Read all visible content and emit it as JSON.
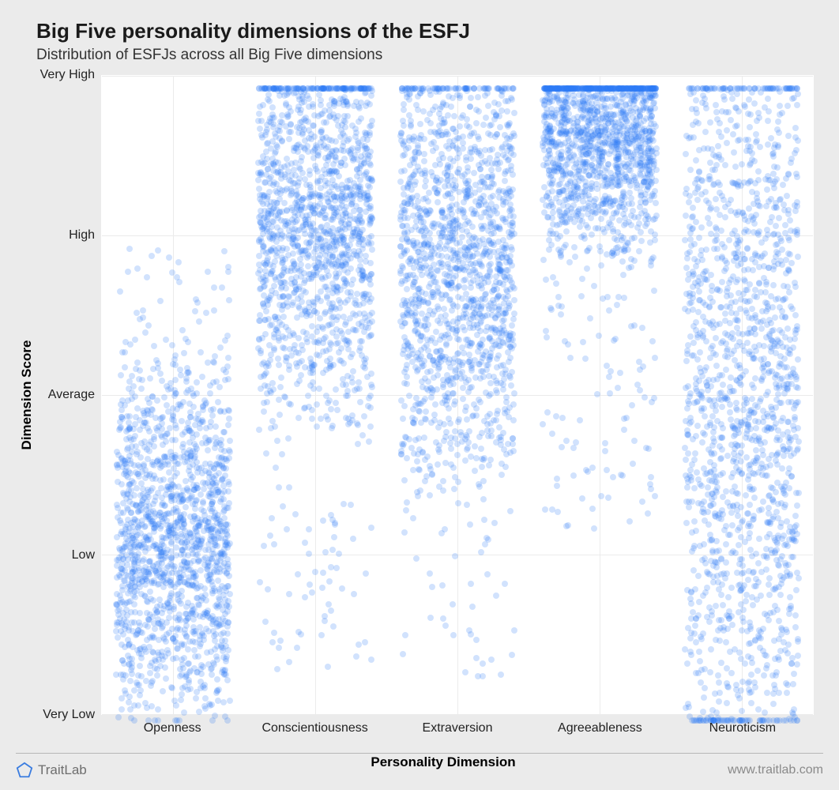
{
  "chart": {
    "type": "strip-jitter",
    "title": "Big Five personality dimensions of the ESFJ",
    "subtitle": "Distribution of ESFJs across all Big Five dimensions",
    "xlabel": "Personality Dimension",
    "ylabel": "Dimension Score",
    "background_color": "#ebebeb",
    "panel_color": "#ffffff",
    "grid_color": "#ebebeb",
    "text_color": "#222222",
    "title_fontsize": 26,
    "subtitle_fontsize": 19,
    "label_fontsize": 17,
    "tick_fontsize": 16,
    "ylim": [
      0,
      100
    ],
    "ytick_positions": [
      0,
      25,
      50,
      75,
      100
    ],
    "ytick_labels": [
      "Very Low",
      "Low",
      "Average",
      "High",
      "Very High"
    ],
    "categories": [
      "Openness",
      "Conscientiousness",
      "Extraversion",
      "Agreeableness",
      "Neuroticism"
    ],
    "dot_color": "#2f7bf5",
    "dot_opacity": 0.22,
    "dot_radius": 4.0,
    "jitter_width": 0.8,
    "points_per_series": 1600,
    "series": {
      "Openness": {
        "low": 0,
        "high": 74,
        "mode": 28,
        "spread": 20
      },
      "Conscientiousness": {
        "low": 8,
        "high": 99,
        "mode": 78,
        "spread": 22
      },
      "Extraversion": {
        "low": 6,
        "high": 99,
        "mode": 72,
        "spread": 24
      },
      "Agreeableness": {
        "low": 30,
        "high": 99,
        "mode": 92,
        "spread": 14
      },
      "Neuroticism": {
        "low": 0,
        "high": 99,
        "mode": 50,
        "spread": 45
      }
    }
  },
  "brand": {
    "name": "TraitLab",
    "logo_color": "#3b7de0",
    "url": "www.traitlab.com"
  }
}
